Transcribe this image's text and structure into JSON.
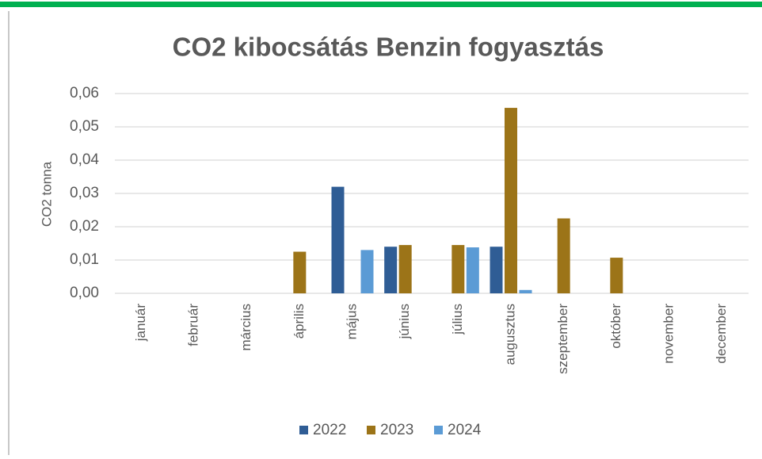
{
  "chart_data": {
    "type": "bar",
    "title": "CO2 kibocsátás Benzin fogyasztás",
    "y_label": "CO2 tonna",
    "categories": [
      "január",
      "február",
      "március",
      "április",
      "május",
      "június",
      "július",
      "augusztus",
      "szeptember",
      "október",
      "november",
      "december"
    ],
    "series": [
      {
        "name": "2022",
        "color": "#2f5d95",
        "values": [
          0,
          0,
          0,
          0,
          0.032,
          0.014,
          0,
          0.014,
          0,
          0,
          0,
          0
        ]
      },
      {
        "name": "2023",
        "color": "#9c7418",
        "values": [
          0,
          0,
          0,
          0.0125,
          0,
          0.0145,
          0.0145,
          0.0557,
          0.0225,
          0.0107,
          0,
          0
        ]
      },
      {
        "name": "2024",
        "color": "#5b9bd5",
        "values": [
          0,
          0,
          0,
          0,
          0.013,
          0,
          0.0138,
          0.001,
          0,
          0,
          0,
          0
        ]
      }
    ],
    "ylim": [
      0,
      0.06
    ],
    "yticks": [
      {
        "value": 0,
        "label": "0,00"
      },
      {
        "value": 0.01,
        "label": "0,01"
      },
      {
        "value": 0.02,
        "label": "0,02"
      },
      {
        "value": 0.03,
        "label": "0,03"
      },
      {
        "value": 0.04,
        "label": "0,04"
      },
      {
        "value": 0.05,
        "label": "0,05"
      },
      {
        "value": 0.06,
        "label": "0,06"
      }
    ],
    "grid": true,
    "legend": "bottom"
  }
}
